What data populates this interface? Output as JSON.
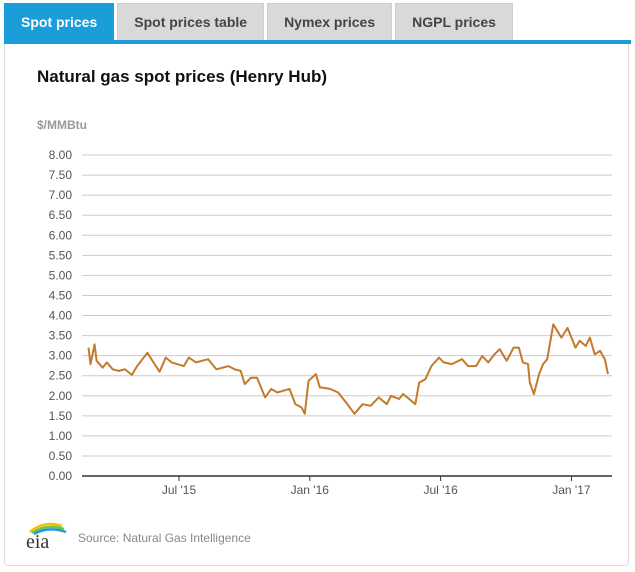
{
  "tabs": [
    {
      "label": "Spot prices",
      "active": true
    },
    {
      "label": "Spot prices table",
      "active": false
    },
    {
      "label": "Nymex prices",
      "active": false
    },
    {
      "label": "NGPL prices",
      "active": false
    }
  ],
  "colors": {
    "accent": "#1b9dd9",
    "line": "#c47a2c"
  },
  "footer": {
    "source": "Source: Natural Gas Intelligence",
    "logo_text": "eia"
  },
  "chart_data": {
    "type": "line",
    "title": "Natural gas spot prices (Henry Hub)",
    "ylabel": "$/MMBtu",
    "xlabel": "",
    "ylim": [
      0,
      8
    ],
    "yticks": [
      "0.00",
      "0.50",
      "1.00",
      "1.50",
      "2.00",
      "2.50",
      "3.00",
      "3.50",
      "4.00",
      "4.50",
      "5.00",
      "5.50",
      "6.00",
      "6.50",
      "7.00",
      "7.50",
      "8.00"
    ],
    "xticks": [
      {
        "label": "Jul '15",
        "month": 6
      },
      {
        "label": "Jan '16",
        "month": 12
      },
      {
        "label": "Jul '16",
        "month": 18
      },
      {
        "label": "Jan '17",
        "month": 24
      }
    ],
    "x_unit": "months since Jan 2015",
    "grid": true,
    "series": [
      {
        "name": "Henry Hub spot price",
        "x": [
          1.85,
          1.94,
          2.13,
          2.22,
          2.5,
          2.69,
          2.96,
          3.24,
          3.52,
          3.84,
          4.08,
          4.55,
          4.83,
          5.11,
          5.39,
          5.66,
          6.22,
          6.45,
          6.78,
          7.34,
          7.71,
          8.27,
          8.55,
          8.83,
          9.02,
          9.3,
          9.58,
          9.95,
          10.23,
          10.51,
          11.07,
          11.34,
          11.62,
          11.77,
          11.94,
          12.28,
          12.46,
          12.93,
          13.3,
          13.67,
          14.05,
          14.42,
          14.79,
          15.16,
          15.53,
          15.72,
          16.09,
          16.28,
          16.56,
          16.84,
          17.02,
          17.3,
          17.58,
          17.92,
          18.14,
          18.51,
          18.98,
          19.26,
          19.63,
          19.91,
          20.19,
          20.47,
          20.71,
          21.03,
          21.35,
          21.59,
          21.77,
          22.01,
          22.09,
          22.28,
          22.52,
          22.7,
          22.89,
          23.17,
          23.54,
          23.82,
          24.19,
          24.38,
          24.66,
          24.85,
          25.07,
          25.31,
          25.53,
          25.68
        ],
        "values": [
          3.2,
          2.79,
          3.28,
          2.87,
          2.7,
          2.83,
          2.66,
          2.62,
          2.66,
          2.52,
          2.74,
          3.07,
          2.83,
          2.6,
          2.95,
          2.83,
          2.74,
          2.95,
          2.83,
          2.91,
          2.66,
          2.74,
          2.66,
          2.62,
          2.29,
          2.45,
          2.45,
          1.96,
          2.17,
          2.08,
          2.17,
          1.79,
          1.71,
          1.55,
          2.37,
          2.54,
          2.21,
          2.17,
          2.08,
          1.83,
          1.55,
          1.79,
          1.75,
          1.96,
          1.79,
          2.0,
          1.92,
          2.04,
          1.92,
          1.79,
          2.33,
          2.41,
          2.74,
          2.95,
          2.83,
          2.79,
          2.91,
          2.74,
          2.74,
          2.99,
          2.83,
          3.03,
          3.16,
          2.87,
          3.2,
          3.2,
          2.83,
          2.79,
          2.33,
          2.04,
          2.54,
          2.79,
          2.91,
          3.78,
          3.45,
          3.69,
          3.2,
          3.37,
          3.24,
          3.45,
          3.03,
          3.12,
          2.91,
          2.54
        ]
      }
    ]
  }
}
